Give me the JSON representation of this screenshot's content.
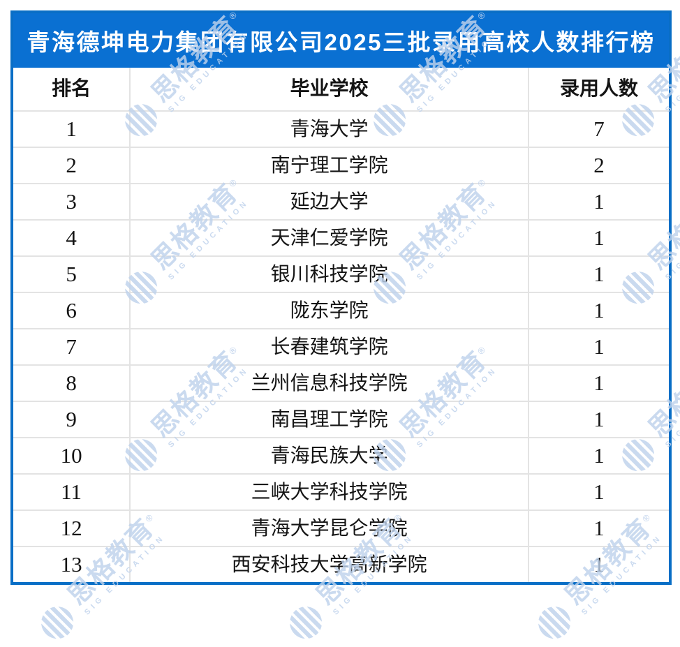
{
  "chart_data": {
    "type": "table",
    "title": "青海德坤电力集团有限公司2025三批录用高校人数排行榜",
    "columns": [
      "排名",
      "毕业学校",
      "录用人数"
    ],
    "rows": [
      [
        "1",
        "青海大学",
        "7"
      ],
      [
        "2",
        "南宁理工学院",
        "2"
      ],
      [
        "3",
        "延边大学",
        "1"
      ],
      [
        "4",
        "天津仁爱学院",
        "1"
      ],
      [
        "5",
        "银川科技学院",
        "1"
      ],
      [
        "6",
        "陇东学院",
        "1"
      ],
      [
        "7",
        "长春建筑学院",
        "1"
      ],
      [
        "8",
        "兰州信息科技学院",
        "1"
      ],
      [
        "9",
        "南昌理工学院",
        "1"
      ],
      [
        "10",
        "青海民族大学",
        "1"
      ],
      [
        "11",
        "三峡大学科技学院",
        "1"
      ],
      [
        "12",
        "青海大学昆仑学院",
        "1"
      ],
      [
        "13",
        "西安科技大学高新学院",
        "1"
      ]
    ]
  },
  "watermark": {
    "text": "思格教育",
    "registered_mark": "®",
    "subtext": "SIG EDUCATION"
  },
  "colors": {
    "title_bar_blue": "#0a70d2",
    "panel_border_blue": "#096ec6",
    "grid_line_gray": "#e3e3e3",
    "text_black": "#141414",
    "title_text_white": "#ffffff",
    "watermark_blue": "#bfd2ec"
  }
}
